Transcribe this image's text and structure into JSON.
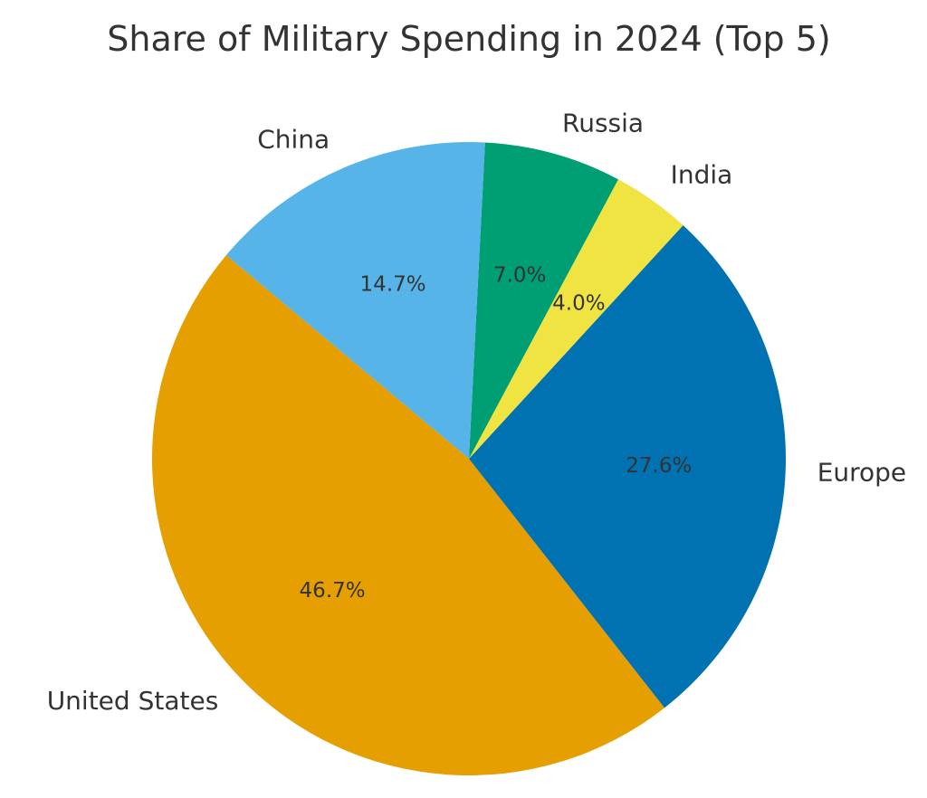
{
  "chart_data": {
    "type": "pie",
    "title": "Share of Military Spending in 2024 (Top 5)",
    "categories": [
      "United States",
      "Europe",
      "India",
      "Russia",
      "China"
    ],
    "values": [
      46.7,
      27.6,
      4.0,
      7.0,
      14.7
    ],
    "value_labels": [
      "46.7%",
      "27.6%",
      "4.0%",
      "7.0%",
      "14.7%"
    ],
    "colors": [
      "#E69F00",
      "#0072B2",
      "#F0E442",
      "#009E73",
      "#56B4E9"
    ],
    "start_angle_deg": 140,
    "direction": "counterclockwise",
    "legend": "none"
  }
}
